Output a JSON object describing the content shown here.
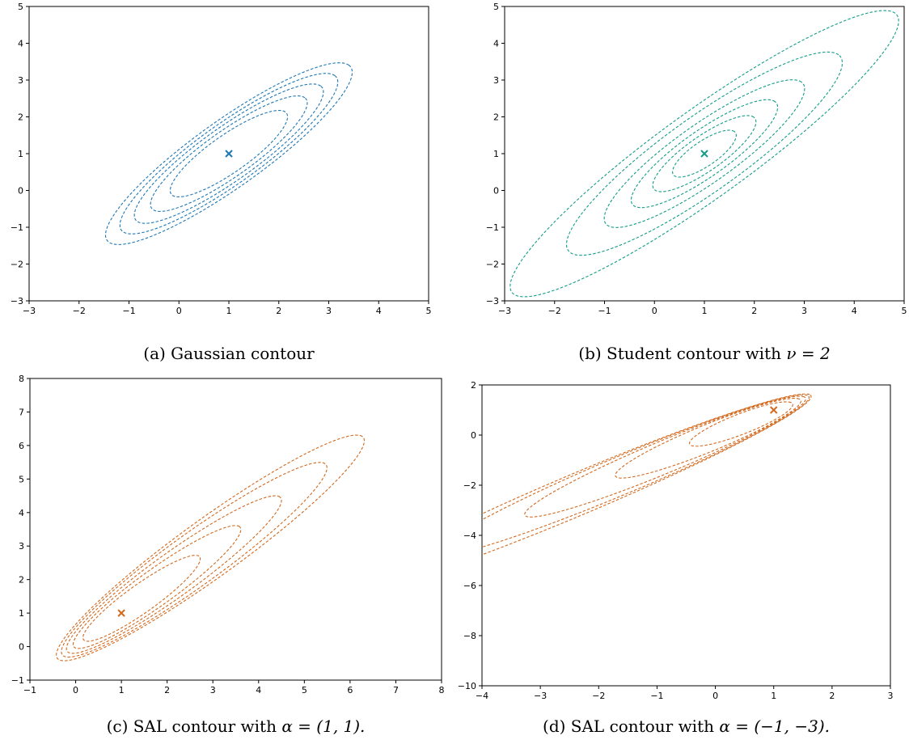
{
  "colors": {
    "gaussian": "#1f77b4",
    "student": "#139d88",
    "sal": "#d2691e"
  },
  "chart_data": [
    {
      "type": "contour",
      "caption": "(a) Gaussian contour",
      "xlim": [
        -3,
        5
      ],
      "ylim": [
        -3,
        5
      ],
      "xticks": [
        -3,
        -2,
        -1,
        0,
        1,
        2,
        3,
        4,
        5
      ],
      "yticks": [
        -3,
        -2,
        -1,
        0,
        1,
        2,
        3,
        4,
        5
      ],
      "xtick_labels": [
        "−3",
        "−2",
        "−1",
        "0",
        "1",
        "2",
        "3",
        "4",
        "5"
      ],
      "ytick_labels": [
        "−3",
        "−2",
        "−1",
        "0",
        "1",
        "2",
        "3",
        "4",
        "5"
      ],
      "center": [
        1,
        1
      ],
      "color_key": "gaussian",
      "levels": [
        {
          "u_min": -1.6,
          "u_max": 1.6,
          "v_half": 0.45
        },
        {
          "u_min": -2.15,
          "u_max": 2.15,
          "v_half": 0.55
        },
        {
          "u_min": -2.6,
          "u_max": 2.6,
          "v_half": 0.64
        },
        {
          "u_min": -3.0,
          "u_max": 3.0,
          "v_half": 0.72
        },
        {
          "u_min": -3.4,
          "u_max": 3.4,
          "v_half": 0.8
        }
      ]
    },
    {
      "type": "contour",
      "caption_prefix": "(b) Student contour with ",
      "caption_math": "ν = 2",
      "xlim": [
        -3,
        5
      ],
      "ylim": [
        -3,
        5
      ],
      "xticks": [
        -3,
        -2,
        -1,
        0,
        1,
        2,
        3,
        4,
        5
      ],
      "yticks": [
        -3,
        -2,
        -1,
        0,
        1,
        2,
        3,
        4,
        5
      ],
      "xtick_labels": [
        "−3",
        "−2",
        "−1",
        "0",
        "1",
        "2",
        "3",
        "4",
        "5"
      ],
      "ytick_labels": [
        "−3",
        "−2",
        "−1",
        "0",
        "1",
        "2",
        "3",
        "4",
        "5"
      ],
      "center": [
        1,
        1
      ],
      "color_key": "student",
      "levels": [
        {
          "u_min": -0.85,
          "u_max": 0.85,
          "v_half": 0.3
        },
        {
          "u_min": -1.4,
          "u_max": 1.4,
          "v_half": 0.42
        },
        {
          "u_min": -2.0,
          "u_max": 2.0,
          "v_half": 0.55
        },
        {
          "u_min": -2.75,
          "u_max": 2.75,
          "v_half": 0.7
        },
        {
          "u_min": -3.8,
          "u_max": 3.8,
          "v_half": 0.9
        },
        {
          "u_min": -5.4,
          "u_max": 5.4,
          "v_half": 1.05
        }
      ]
    },
    {
      "type": "contour",
      "caption_prefix": "(c) SAL contour with ",
      "caption_math": "α = (1, 1).",
      "xlim": [
        -1,
        8
      ],
      "ylim": [
        -1,
        8
      ],
      "xticks": [
        -1,
        0,
        1,
        2,
        3,
        4,
        5,
        6,
        7,
        8
      ],
      "yticks": [
        -1,
        0,
        1,
        2,
        3,
        4,
        5,
        6,
        7,
        8
      ],
      "xtick_labels": [
        "−1",
        "0",
        "1",
        "2",
        "3",
        "4",
        "5",
        "6",
        "7",
        "8"
      ],
      "ytick_labels": [
        "−1",
        "0",
        "1",
        "2",
        "3",
        "4",
        "5",
        "6",
        "7",
        "8"
      ],
      "center": [
        1,
        1
      ],
      "color_key": "sal",
      "levels": [
        {
          "u_min": -1.15,
          "u_max": 2.4,
          "v_half": 0.37
        },
        {
          "u_min": -1.45,
          "u_max": 3.65,
          "v_half": 0.47
        },
        {
          "u_min": -1.65,
          "u_max": 4.9,
          "v_half": 0.57
        },
        {
          "u_min": -1.8,
          "u_max": 6.3,
          "v_half": 0.68
        },
        {
          "u_min": -1.95,
          "u_max": 7.45,
          "v_half": 0.76
        }
      ]
    },
    {
      "type": "contour",
      "caption_prefix": "(d) SAL contour with ",
      "caption_math": "α = (−1, −3).",
      "xlim": [
        -4,
        3
      ],
      "ylim": [
        -10,
        2
      ],
      "xticks": [
        -4,
        -3,
        -2,
        -1,
        0,
        1,
        2,
        3
      ],
      "yticks": [
        -10,
        -8,
        -6,
        -4,
        -2,
        0,
        2
      ],
      "xtick_labels": [
        "−4",
        "−3",
        "−2",
        "−1",
        "0",
        "1",
        "2",
        "3"
      ],
      "ytick_labels": [
        "−10",
        "−8",
        "−6",
        "−4",
        "−2",
        "0",
        "2"
      ],
      "center": [
        1,
        1
      ],
      "color_key": "sal",
      "levels": [
        {
          "u_min": -2.0,
          "u_max": 0.42,
          "v_half": 0.32
        },
        {
          "u_min": -3.8,
          "u_max": 0.62,
          "v_half": 0.42
        },
        {
          "u_min": -6.0,
          "u_max": 0.74,
          "v_half": 0.5
        },
        {
          "u_min": -8.2,
          "u_max": 0.82,
          "v_half": 0.58
        },
        {
          "u_min": -10.3,
          "u_max": 0.87,
          "v_half": 0.64
        }
      ]
    }
  ]
}
